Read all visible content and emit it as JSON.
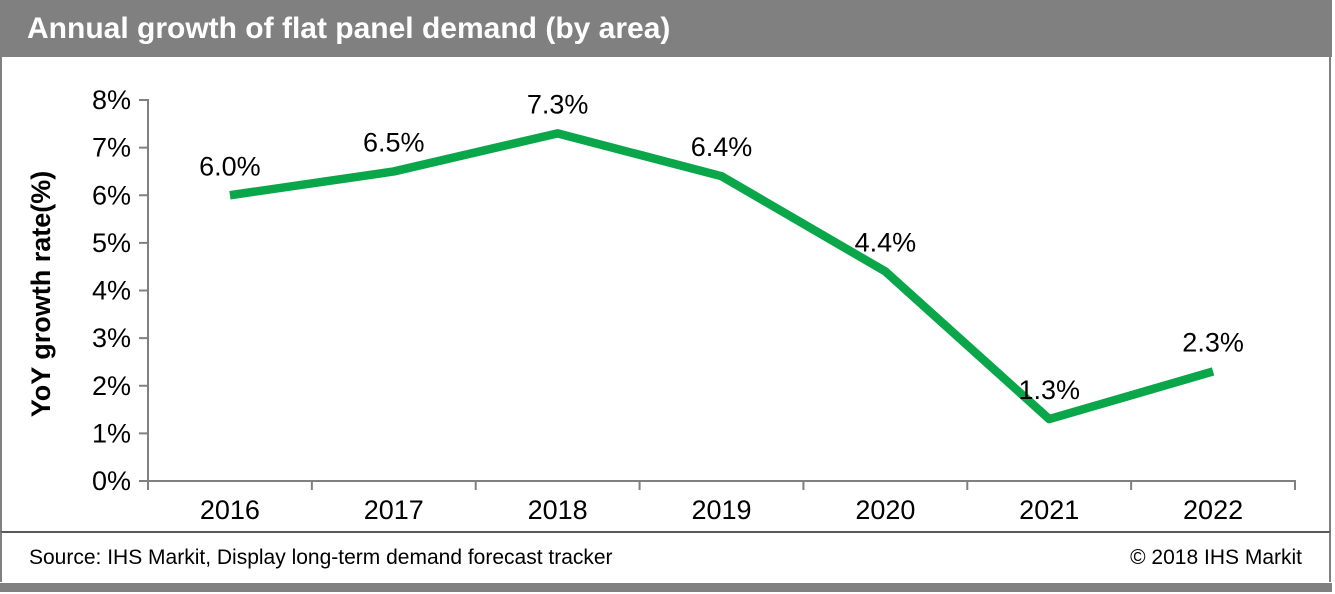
{
  "header": {
    "bg_color": "#808080",
    "text_color": "#ffffff"
  },
  "footer": {
    "source": "Source: IHS Markit, Display long-term demand forecast tracker",
    "copyright": "© 2018 IHS Markit"
  },
  "chart_data": {
    "type": "line",
    "title": "Annual growth of flat panel demand (by area)",
    "categories": [
      "2016",
      "2017",
      "2018",
      "2019",
      "2020",
      "2021",
      "2022"
    ],
    "values": [
      6.0,
      6.5,
      7.3,
      6.4,
      4.4,
      1.3,
      2.3
    ],
    "data_labels": [
      "6.0%",
      "6.5%",
      "7.3%",
      "6.4%",
      "4.4%",
      "1.3%",
      "2.3%"
    ],
    "xlabel": "",
    "ylabel": "YoY growth rate(%)",
    "ylim": [
      0,
      8
    ],
    "ytick_step": 1,
    "ytick_suffix": "%",
    "grid": false,
    "legend": "none",
    "line_color": "#0aa64a",
    "axis_color": "#808080",
    "label_color": "#000000"
  }
}
